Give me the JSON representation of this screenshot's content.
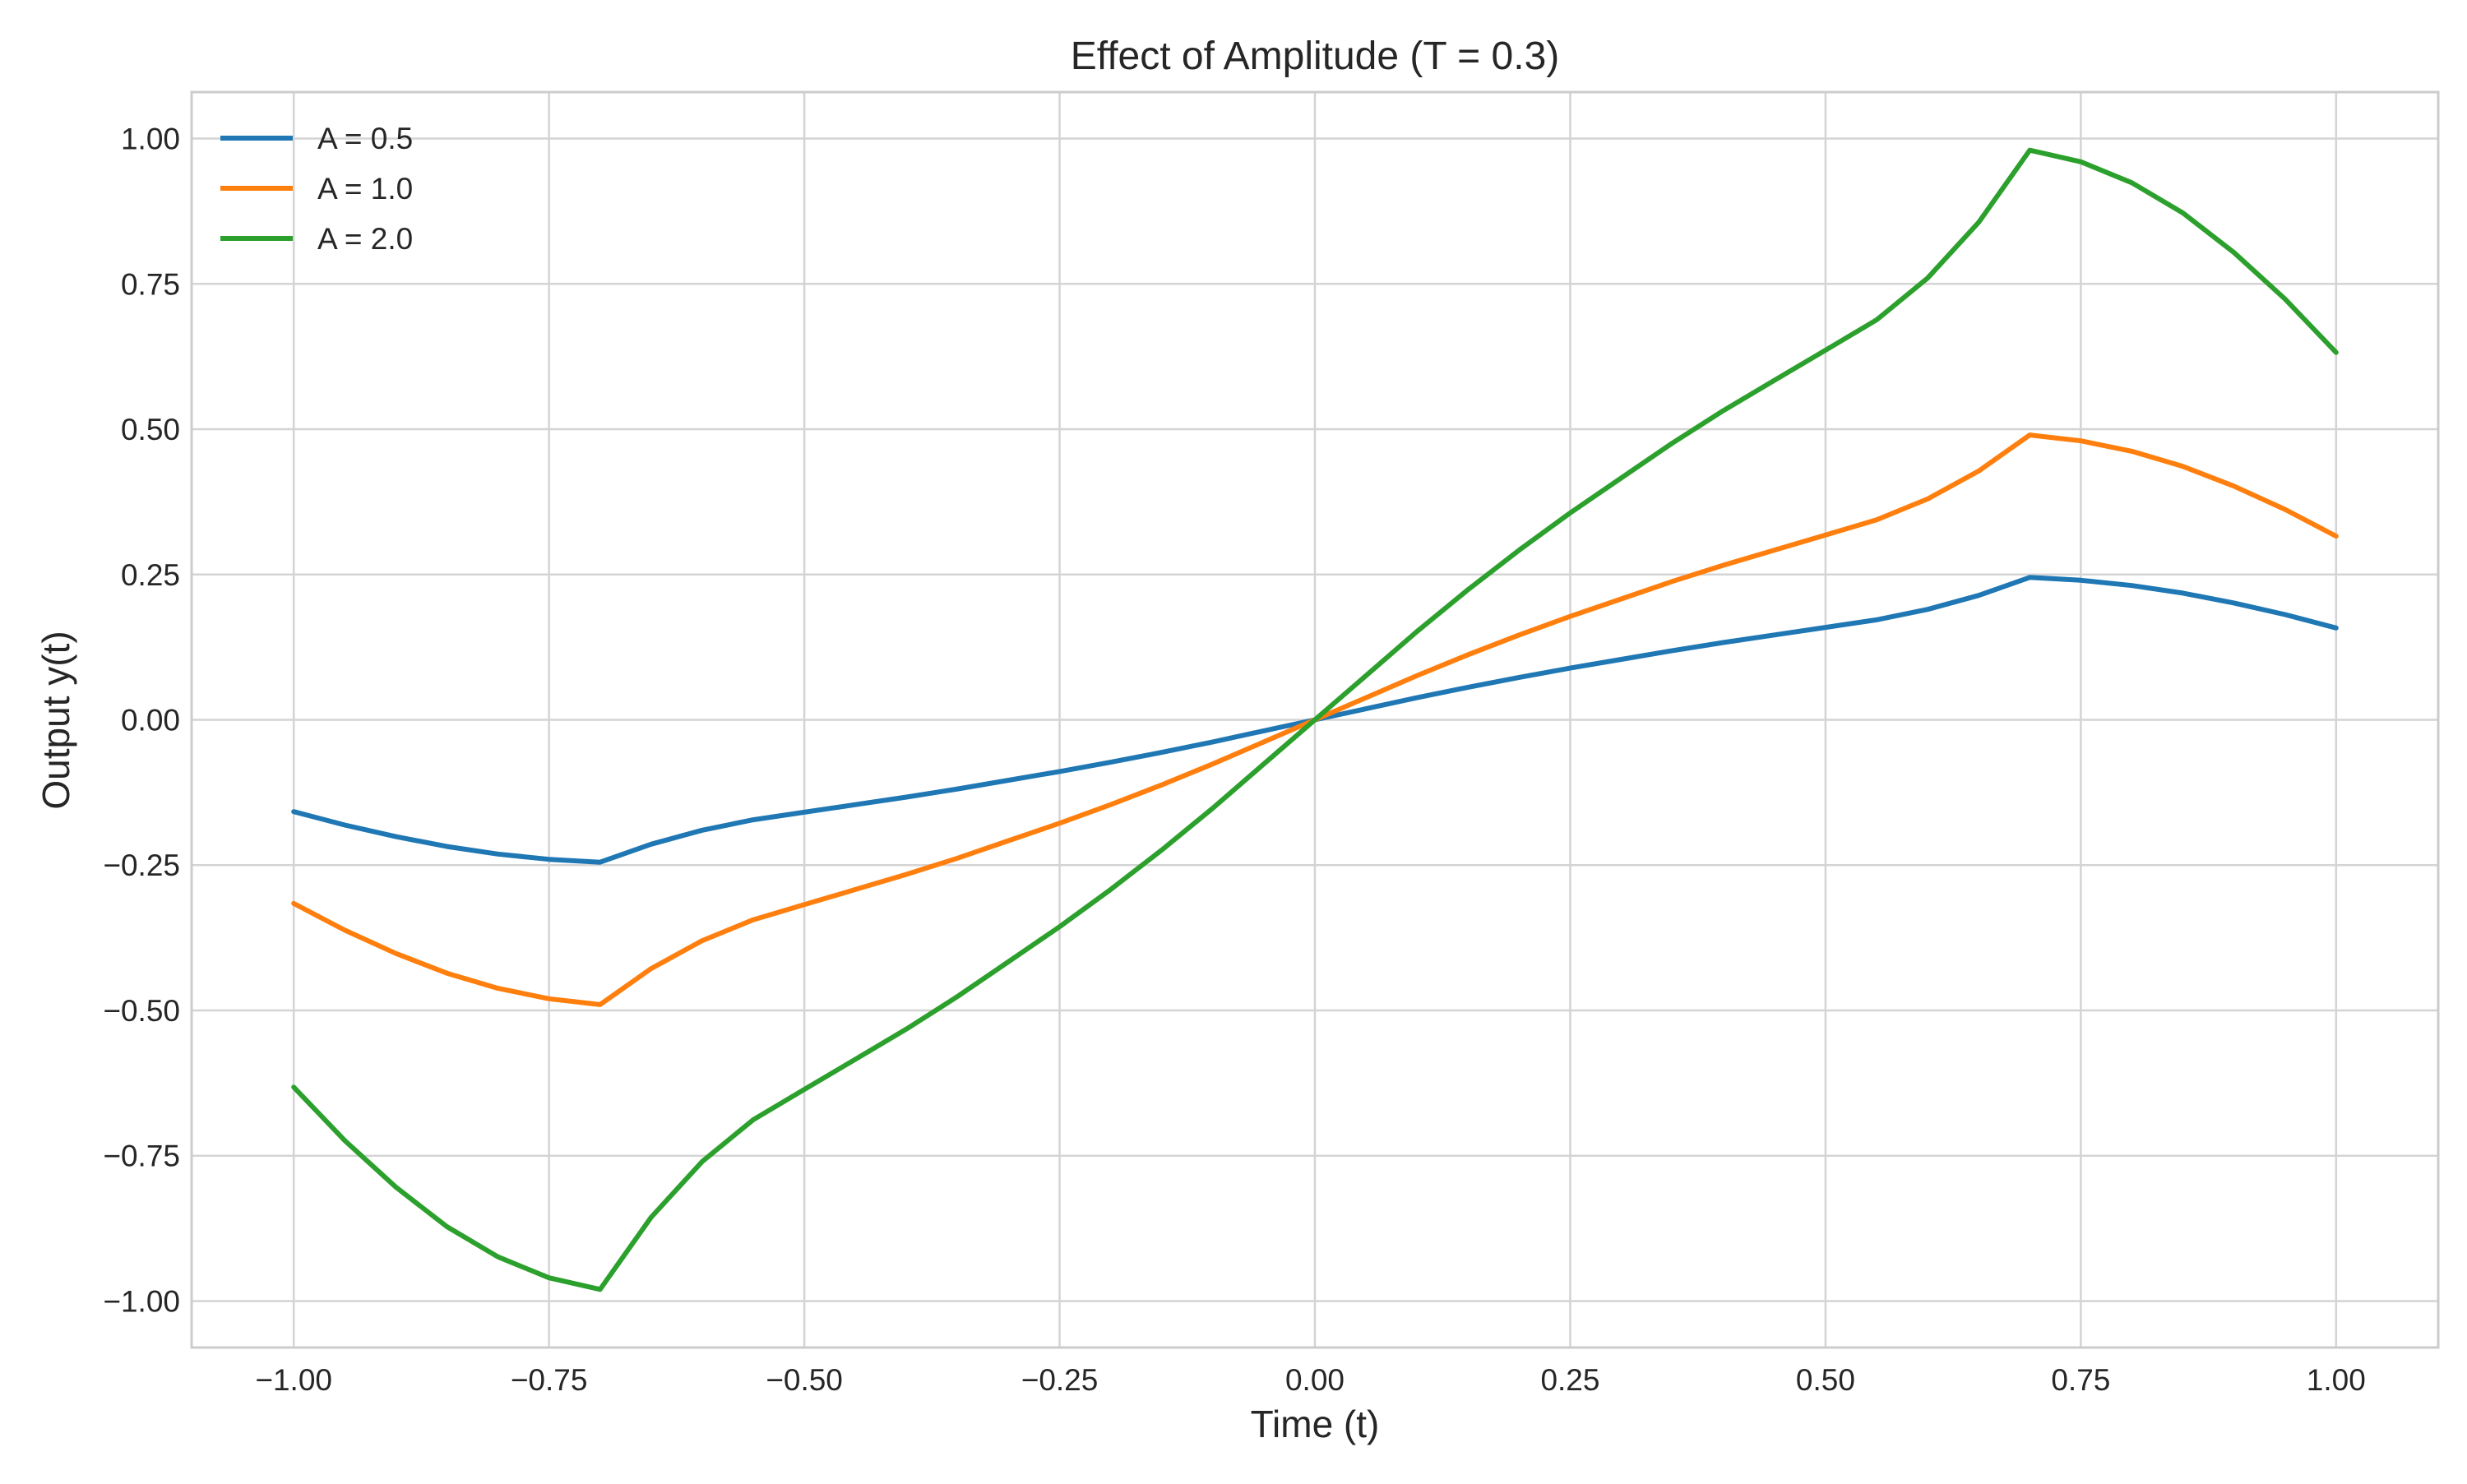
{
  "chart_data": {
    "type": "line",
    "title": "Effect of Amplitude (T = 0.3)",
    "xlabel": "Time (t)",
    "ylabel": "Output y(t)",
    "xlim": [
      -1.1,
      1.1
    ],
    "ylim": [
      -1.08,
      1.08
    ],
    "xticks": [
      -1.0,
      -0.75,
      -0.5,
      -0.25,
      0.0,
      0.25,
      0.5,
      0.75,
      1.0
    ],
    "xtick_labels": [
      "−1.00",
      "−0.75",
      "−0.50",
      "−0.25",
      "0.00",
      "0.25",
      "0.50",
      "0.75",
      "1.00"
    ],
    "yticks": [
      -1.0,
      -0.75,
      -0.5,
      -0.25,
      0.0,
      0.25,
      0.5,
      0.75,
      1.0
    ],
    "ytick_labels": [
      "−1.00",
      "−0.75",
      "−0.50",
      "−0.25",
      "0.00",
      "0.25",
      "0.50",
      "0.75",
      "1.00"
    ],
    "grid": true,
    "legend_position": "top-left",
    "x": [
      -1.0,
      -0.95,
      -0.9,
      -0.85,
      -0.8,
      -0.75,
      -0.7,
      -0.65,
      -0.6,
      -0.55,
      -0.5,
      -0.45,
      -0.4,
      -0.35,
      -0.3,
      -0.25,
      -0.2,
      -0.15,
      -0.1,
      -0.05,
      0.0,
      0.05,
      0.1,
      0.15,
      0.2,
      0.25,
      0.3,
      0.35,
      0.4,
      0.45,
      0.5,
      0.55,
      0.6,
      0.65,
      0.7,
      0.75,
      0.8,
      0.85,
      0.9,
      0.95,
      1.0
    ],
    "series": [
      {
        "name": "A = 0.5",
        "color": "#1f77b4",
        "values": [
          -0.158,
          -0.181,
          -0.201,
          -0.218,
          -0.231,
          -0.24,
          -0.245,
          -0.214,
          -0.19,
          -0.172,
          -0.159,
          -0.146,
          -0.133,
          -0.119,
          -0.104,
          -0.089,
          -0.073,
          -0.056,
          -0.038,
          -0.019,
          0.0,
          0.019,
          0.038,
          0.056,
          0.073,
          0.089,
          0.104,
          0.119,
          0.133,
          0.146,
          0.159,
          0.172,
          0.19,
          0.214,
          0.245,
          0.24,
          0.231,
          0.218,
          0.201,
          0.181,
          0.158
        ]
      },
      {
        "name": "A = 1.0",
        "color": "#ff7f0e",
        "values": [
          -0.316,
          -0.362,
          -0.402,
          -0.436,
          -0.462,
          -0.48,
          -0.49,
          -0.428,
          -0.38,
          -0.344,
          -0.318,
          -0.292,
          -0.266,
          -0.238,
          -0.208,
          -0.178,
          -0.146,
          -0.112,
          -0.076,
          -0.038,
          0.0,
          0.038,
          0.076,
          0.112,
          0.146,
          0.178,
          0.208,
          0.238,
          0.266,
          0.292,
          0.318,
          0.344,
          0.38,
          0.428,
          0.49,
          0.48,
          0.462,
          0.436,
          0.402,
          0.362,
          0.316
        ]
      },
      {
        "name": "A = 2.0",
        "color": "#2ca02c",
        "values": [
          -0.632,
          -0.724,
          -0.804,
          -0.872,
          -0.924,
          -0.96,
          -0.98,
          -0.856,
          -0.76,
          -0.688,
          -0.636,
          -0.584,
          -0.532,
          -0.476,
          -0.416,
          -0.356,
          -0.292,
          -0.224,
          -0.152,
          -0.076,
          0.0,
          0.076,
          0.152,
          0.224,
          0.292,
          0.356,
          0.416,
          0.476,
          0.532,
          0.584,
          0.636,
          0.688,
          0.76,
          0.856,
          0.98,
          0.96,
          0.924,
          0.872,
          0.804,
          0.724,
          0.632
        ]
      }
    ]
  }
}
